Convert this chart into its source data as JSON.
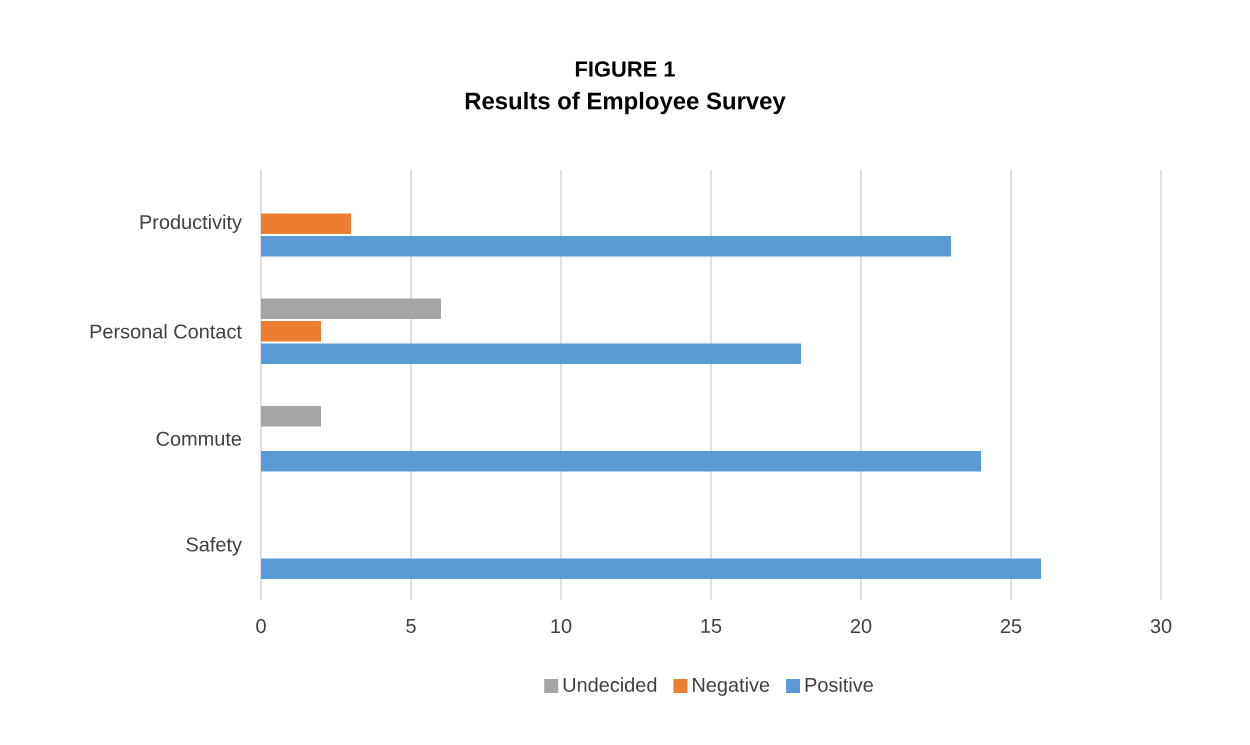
{
  "chart_data": {
    "type": "bar",
    "orientation": "horizontal",
    "title": "FIGURE 1",
    "subtitle": "Results of Employee Survey",
    "categories": [
      "Productivity",
      "Personal Contact",
      "Commute",
      "Safety"
    ],
    "series": [
      {
        "name": "Undecided",
        "color": "#a5a5a5",
        "values": [
          null,
          6,
          2,
          null
        ]
      },
      {
        "name": "Negative",
        "color": "#ed7d31",
        "values": [
          3,
          2,
          null,
          null
        ]
      },
      {
        "name": "Positive",
        "color": "#5b9bd5",
        "values": [
          23,
          18,
          24,
          26
        ]
      }
    ],
    "xlim": [
      0,
      30
    ],
    "xticks": [
      0,
      5,
      10,
      15,
      20,
      25,
      30
    ],
    "grid": "x",
    "legend": "bottom"
  }
}
